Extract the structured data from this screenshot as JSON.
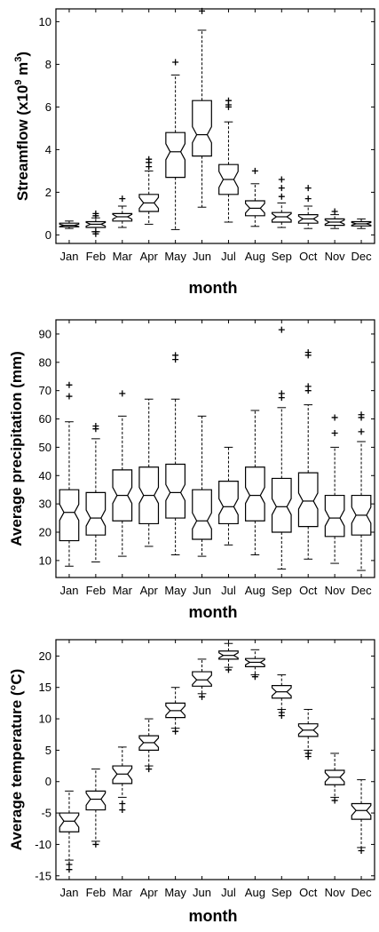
{
  "chart_data": [
    {
      "type": "boxplot",
      "notched": true,
      "xlabel": "month",
      "ylabel": "Streamflow (x10",
      "ylabel_sup": "9",
      "ylabel_tail": " m",
      "ylabel_sup2": "3",
      "ylabel_close": ")",
      "categories": [
        "Jan",
        "Feb",
        "Mar",
        "Apr",
        "May",
        "Jun",
        "Jul",
        "Aug",
        "Sep",
        "Oct",
        "Nov",
        "Dec"
      ],
      "ylim": [
        -0.4,
        10.6
      ],
      "yticks": [
        0,
        2,
        4,
        6,
        8,
        10
      ],
      "boxes": [
        {
          "whisker_low": 0.3,
          "q1": 0.38,
          "median": 0.45,
          "q3": 0.55,
          "whisker_high": 0.65,
          "outliers": []
        },
        {
          "whisker_low": 0.15,
          "q1": 0.35,
          "median": 0.5,
          "q3": 0.62,
          "whisker_high": 0.8,
          "outliers": [
            0.05,
            0.15,
            0.9,
            1.0
          ]
        },
        {
          "whisker_low": 0.35,
          "q1": 0.65,
          "median": 0.85,
          "q3": 1.0,
          "whisker_high": 1.35,
          "outliers": [
            1.7
          ]
        },
        {
          "whisker_low": 0.5,
          "q1": 1.1,
          "median": 1.5,
          "q3": 1.9,
          "whisker_high": 3.0,
          "outliers": [
            3.2,
            3.4,
            3.55
          ]
        },
        {
          "whisker_low": 0.25,
          "q1": 2.7,
          "median": 3.9,
          "q3": 4.8,
          "whisker_high": 7.5,
          "outliers": [
            8.1
          ]
        },
        {
          "whisker_low": 1.3,
          "q1": 3.7,
          "median": 4.7,
          "q3": 6.3,
          "whisker_high": 9.6,
          "outliers": [
            10.5
          ]
        },
        {
          "whisker_low": 0.6,
          "q1": 1.9,
          "median": 2.6,
          "q3": 3.3,
          "whisker_high": 5.3,
          "outliers": [
            6.0,
            6.1,
            6.3
          ]
        },
        {
          "whisker_low": 0.4,
          "q1": 0.9,
          "median": 1.25,
          "q3": 1.6,
          "whisker_high": 2.4,
          "outliers": [
            3.0
          ]
        },
        {
          "whisker_low": 0.35,
          "q1": 0.6,
          "median": 0.85,
          "q3": 1.05,
          "whisker_high": 1.5,
          "outliers": [
            1.8,
            2.2,
            2.6
          ]
        },
        {
          "whisker_low": 0.3,
          "q1": 0.55,
          "median": 0.75,
          "q3": 0.95,
          "whisker_high": 1.35,
          "outliers": [
            1.7,
            2.2
          ]
        },
        {
          "whisker_low": 0.3,
          "q1": 0.45,
          "median": 0.6,
          "q3": 0.75,
          "whisker_high": 0.95,
          "outliers": [
            1.1
          ]
        },
        {
          "whisker_low": 0.3,
          "q1": 0.42,
          "median": 0.52,
          "q3": 0.62,
          "whisker_high": 0.75,
          "outliers": []
        }
      ]
    },
    {
      "type": "boxplot",
      "notched": true,
      "xlabel": "month",
      "ylabel": "Average precipitation (mm)",
      "categories": [
        "Jan",
        "Feb",
        "Mar",
        "Apr",
        "May",
        "Jun",
        "Jul",
        "Aug",
        "Sep",
        "Oct",
        "Nov",
        "Dec"
      ],
      "ylim": [
        4,
        95
      ],
      "yticks": [
        10,
        20,
        30,
        40,
        50,
        60,
        70,
        80,
        90
      ],
      "boxes": [
        {
          "whisker_low": 8,
          "q1": 17,
          "median": 27,
          "q3": 35,
          "whisker_high": 59,
          "outliers": [
            68,
            72
          ]
        },
        {
          "whisker_low": 9.5,
          "q1": 19,
          "median": 25,
          "q3": 34,
          "whisker_high": 53,
          "outliers": [
            56.5,
            57.5
          ]
        },
        {
          "whisker_low": 11.5,
          "q1": 24,
          "median": 33,
          "q3": 42,
          "whisker_high": 61,
          "outliers": [
            69
          ]
        },
        {
          "whisker_low": 15,
          "q1": 23,
          "median": 33,
          "q3": 43,
          "whisker_high": 67,
          "outliers": []
        },
        {
          "whisker_low": 12,
          "q1": 25,
          "median": 34,
          "q3": 44,
          "whisker_high": 67,
          "outliers": [
            81,
            82.5
          ]
        },
        {
          "whisker_low": 11.5,
          "q1": 17.5,
          "median": 24,
          "q3": 35,
          "whisker_high": 61,
          "outliers": []
        },
        {
          "whisker_low": 15.5,
          "q1": 23,
          "median": 29,
          "q3": 38,
          "whisker_high": 50,
          "outliers": []
        },
        {
          "whisker_low": 12,
          "q1": 24,
          "median": 33,
          "q3": 43,
          "whisker_high": 63,
          "outliers": []
        },
        {
          "whisker_low": 7,
          "q1": 20,
          "median": 29,
          "q3": 39,
          "whisker_high": 64,
          "outliers": [
            67.5,
            69,
            91.5
          ]
        },
        {
          "whisker_low": 10.5,
          "q1": 22,
          "median": 31,
          "q3": 41,
          "whisker_high": 65,
          "outliers": [
            70,
            71.5,
            82.5,
            83.5
          ]
        },
        {
          "whisker_low": 9,
          "q1": 18.5,
          "median": 25,
          "q3": 33,
          "whisker_high": 50,
          "outliers": [
            55,
            60.5
          ]
        },
        {
          "whisker_low": 6.5,
          "q1": 19,
          "median": 26,
          "q3": 33,
          "whisker_high": 52,
          "outliers": [
            55.5,
            60.5,
            61.5
          ]
        }
      ]
    },
    {
      "type": "boxplot",
      "notched": true,
      "xlabel": "month",
      "ylabel": "Average temperature (°C)",
      "categories": [
        "Jan",
        "Feb",
        "Mar",
        "Apr",
        "May",
        "Jun",
        "Jul",
        "Aug",
        "Sep",
        "Oct",
        "Nov",
        "Dec"
      ],
      "ylim": [
        -15.6,
        22.6
      ],
      "yticks": [
        -15,
        -10,
        -5,
        0,
        5,
        10,
        15,
        20
      ],
      "boxes": [
        {
          "whisker_low": -12.5,
          "q1": -8,
          "median": -6.3,
          "q3": -5,
          "whisker_high": -1.5,
          "outliers": [
            -13.2,
            -14
          ]
        },
        {
          "whisker_low": -9.5,
          "q1": -4.5,
          "median": -2.8,
          "q3": -1.5,
          "whisker_high": 2,
          "outliers": [
            -10
          ]
        },
        {
          "whisker_low": -2.5,
          "q1": -0.3,
          "median": 1.2,
          "q3": 2.5,
          "whisker_high": 5.5,
          "outliers": [
            -3.5,
            -4.5
          ]
        },
        {
          "whisker_low": 2.5,
          "q1": 5,
          "median": 6.2,
          "q3": 7.3,
          "whisker_high": 10,
          "outliers": [
            2
          ]
        },
        {
          "whisker_low": 8.5,
          "q1": 10.2,
          "median": 11.3,
          "q3": 12.5,
          "whisker_high": 15,
          "outliers": [
            8
          ]
        },
        {
          "whisker_low": 14,
          "q1": 15.2,
          "median": 16.2,
          "q3": 17.5,
          "whisker_high": 19.5,
          "outliers": [
            13.5
          ]
        },
        {
          "whisker_low": 18.2,
          "q1": 19.5,
          "median": 20.1,
          "q3": 20.8,
          "whisker_high": 22,
          "outliers": [
            17.8
          ]
        },
        {
          "whisker_low": 17,
          "q1": 18.3,
          "median": 19,
          "q3": 19.6,
          "whisker_high": 21,
          "outliers": [
            16.7
          ]
        },
        {
          "whisker_low": 11.5,
          "q1": 13.3,
          "median": 14.3,
          "q3": 15.3,
          "whisker_high": 17,
          "outliers": [
            10.5,
            11
          ]
        },
        {
          "whisker_low": 5,
          "q1": 7.2,
          "median": 8.2,
          "q3": 9.2,
          "whisker_high": 11.5,
          "outliers": [
            4,
            4.5
          ]
        },
        {
          "whisker_low": -2.5,
          "q1": -0.5,
          "median": 0.7,
          "q3": 1.8,
          "whisker_high": 4.5,
          "outliers": [
            -3
          ]
        },
        {
          "whisker_low": -10.5,
          "q1": -6,
          "median": -4.6,
          "q3": -3.5,
          "whisker_high": 0.3,
          "outliers": [
            -11
          ]
        }
      ]
    }
  ]
}
